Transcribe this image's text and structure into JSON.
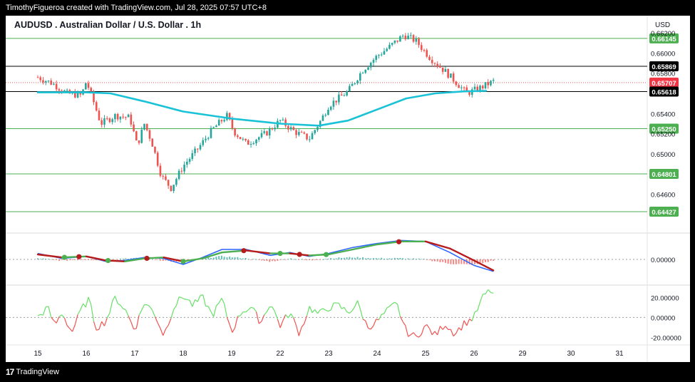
{
  "header": {
    "attribution": "TimothyFigueroa created with TradingView.com, Jul 28, 2025 07:57 UTC+8",
    "symbol_title": "AUDUSD . Australian Dollar / U.S. Dollar . 1h",
    "currency": "USD"
  },
  "footer": {
    "logo_mark": "17",
    "logo_text": "TradingView"
  },
  "colors": {
    "up": "#26a69a",
    "down": "#ef5350",
    "ma": "#19c2d6",
    "hline_green": "#4caf50",
    "hline_black": "#000000",
    "price_dotted": "#ef5350",
    "macd_fast": "#2962ff",
    "macd_slow_up": "#4caf50",
    "macd_slow_down": "#b71c1c",
    "osc_up": "#66e066",
    "osc_down": "#ef5350"
  },
  "chart_data": {
    "type": "candlestick",
    "price_axis": {
      "ticks": [
        "0.66200",
        "0.66000",
        "0.65800",
        "0.65400",
        "0.65200",
        "0.65000",
        "0.64600"
      ],
      "ylim": [
        0.6425,
        0.663
      ]
    },
    "levels": [
      {
        "value": 0.66145,
        "label": "0.66145",
        "color": "#4caf50"
      },
      {
        "value": 0.65869,
        "label": "0.65869",
        "color": "#000000"
      },
      {
        "value": 0.65707,
        "label": "0.65707",
        "color": "#ef5350",
        "style": "dotted"
      },
      {
        "value": 0.65618,
        "label": "0.65618",
        "color": "#000000"
      },
      {
        "value": 0.6525,
        "label": "0.65250",
        "color": "#4caf50"
      },
      {
        "value": 0.64801,
        "label": "0.64801",
        "color": "#4caf50"
      },
      {
        "value": 0.64427,
        "label": "0.64427",
        "color": "#4caf50"
      }
    ],
    "time_axis": {
      "labels": [
        "15",
        "16",
        "17",
        "18",
        "19",
        "22",
        "23",
        "24",
        "25",
        "26",
        "29",
        "30",
        "31"
      ],
      "positions": [
        0,
        1,
        2,
        3,
        4,
        5,
        6,
        7,
        8,
        9,
        10,
        11,
        12
      ]
    },
    "price_path": [
      [
        0,
        0.6576
      ],
      [
        0.3,
        0.657
      ],
      [
        0.6,
        0.656
      ],
      [
        0.9,
        0.6558
      ],
      [
        1.0,
        0.6572
      ],
      [
        1.15,
        0.6552
      ],
      [
        1.3,
        0.653
      ],
      [
        1.6,
        0.6538
      ],
      [
        1.9,
        0.6536
      ],
      [
        2.05,
        0.6508
      ],
      [
        2.2,
        0.653
      ],
      [
        2.35,
        0.6512
      ],
      [
        2.55,
        0.6478
      ],
      [
        2.75,
        0.6466
      ],
      [
        3.0,
        0.6488
      ],
      [
        3.3,
        0.6505
      ],
      [
        3.6,
        0.6524
      ],
      [
        3.9,
        0.6538
      ],
      [
        4.05,
        0.6522
      ],
      [
        4.3,
        0.651
      ],
      [
        4.7,
        0.652
      ],
      [
        5.0,
        0.6533
      ],
      [
        5.3,
        0.6522
      ],
      [
        5.6,
        0.6515
      ],
      [
        5.85,
        0.6534
      ],
      [
        6.0,
        0.6548
      ],
      [
        6.4,
        0.6562
      ],
      [
        6.7,
        0.6583
      ],
      [
        7.0,
        0.6597
      ],
      [
        7.25,
        0.6606
      ],
      [
        7.55,
        0.6618
      ],
      [
        7.8,
        0.6612
      ],
      [
        8.1,
        0.6595
      ],
      [
        8.4,
        0.6582
      ],
      [
        8.65,
        0.657
      ],
      [
        8.85,
        0.656
      ],
      [
        9.15,
        0.6566
      ],
      [
        9.4,
        0.6572
      ]
    ],
    "moving_average": [
      [
        0,
        0.6561
      ],
      [
        1.0,
        0.6561
      ],
      [
        1.5,
        0.656
      ],
      [
        2.2,
        0.6552
      ],
      [
        3.0,
        0.6542
      ],
      [
        4.0,
        0.6535
      ],
      [
        5.0,
        0.653
      ],
      [
        5.8,
        0.6528
      ],
      [
        6.4,
        0.6533
      ],
      [
        7.0,
        0.6544
      ],
      [
        7.6,
        0.6555
      ],
      [
        8.2,
        0.656
      ],
      [
        8.8,
        0.6562
      ],
      [
        9.25,
        0.65625
      ]
    ],
    "macd": {
      "zero_label": "0.00000",
      "fast": [
        [
          0,
          0.3
        ],
        [
          0.5,
          0.05
        ],
        [
          1.0,
          0.15
        ],
        [
          1.4,
          -0.1
        ],
        [
          1.8,
          -0.05
        ],
        [
          2.2,
          0.1
        ],
        [
          2.6,
          0.05
        ],
        [
          3.0,
          -0.25
        ],
        [
          3.4,
          0.1
        ],
        [
          3.8,
          0.5
        ],
        [
          4.3,
          0.5
        ],
        [
          4.8,
          0.2
        ],
        [
          5.2,
          0.35
        ],
        [
          5.6,
          0.15
        ],
        [
          6.0,
          0.3
        ],
        [
          6.5,
          0.6
        ],
        [
          7.0,
          0.8
        ],
        [
          7.5,
          0.95
        ],
        [
          8.0,
          0.9
        ],
        [
          8.5,
          0.35
        ],
        [
          9.0,
          -0.3
        ],
        [
          9.4,
          -0.6
        ]
      ],
      "slow": [
        [
          0,
          0.25
        ],
        [
          0.5,
          0.1
        ],
        [
          1.0,
          0.15
        ],
        [
          1.4,
          -0.05
        ],
        [
          1.8,
          -0.1
        ],
        [
          2.2,
          0.05
        ],
        [
          2.6,
          0.1
        ],
        [
          3.0,
          -0.1
        ],
        [
          3.4,
          0.05
        ],
        [
          3.8,
          0.35
        ],
        [
          4.3,
          0.45
        ],
        [
          4.8,
          0.3
        ],
        [
          5.2,
          0.3
        ],
        [
          5.6,
          0.2
        ],
        [
          6.0,
          0.25
        ],
        [
          6.5,
          0.5
        ],
        [
          7.0,
          0.75
        ],
        [
          7.5,
          0.9
        ],
        [
          8.0,
          0.9
        ],
        [
          8.5,
          0.55
        ],
        [
          9.0,
          -0.05
        ],
        [
          9.4,
          -0.55
        ]
      ],
      "cross_markers": [
        {
          "x": 0.55,
          "type": "up"
        },
        {
          "x": 0.85,
          "type": "down"
        },
        {
          "x": 1.45,
          "type": "up"
        },
        {
          "x": 2.25,
          "type": "down"
        },
        {
          "x": 3.0,
          "type": "up"
        },
        {
          "x": 4.25,
          "type": "down"
        },
        {
          "x": 5.0,
          "type": "up"
        },
        {
          "x": 5.4,
          "type": "down"
        },
        {
          "x": 5.95,
          "type": "up"
        },
        {
          "x": 7.45,
          "type": "down"
        }
      ]
    },
    "oscillator": {
      "ticks": [
        "20.00000",
        "0.00000",
        "-20.00000"
      ],
      "ylim": [
        -26,
        28
      ],
      "values": [
        [
          0,
          0
        ],
        [
          0.2,
          10
        ],
        [
          0.35,
          -8
        ],
        [
          0.5,
          5
        ],
        [
          0.7,
          -15
        ],
        [
          0.9,
          8
        ],
        [
          1.05,
          18
        ],
        [
          1.2,
          -10
        ],
        [
          1.4,
          -4
        ],
        [
          1.6,
          20
        ],
        [
          1.8,
          8
        ],
        [
          2.0,
          -12
        ],
        [
          2.2,
          15
        ],
        [
          2.4,
          5
        ],
        [
          2.6,
          -18
        ],
        [
          2.8,
          10
        ],
        [
          3.0,
          22
        ],
        [
          3.2,
          12
        ],
        [
          3.4,
          20
        ],
        [
          3.6,
          2
        ],
        [
          3.8,
          18
        ],
        [
          4.0,
          -14
        ],
        [
          4.2,
          6
        ],
        [
          4.4,
          10
        ],
        [
          4.6,
          -5
        ],
        [
          4.8,
          15
        ],
        [
          5.0,
          -8
        ],
        [
          5.2,
          5
        ],
        [
          5.4,
          -16
        ],
        [
          5.6,
          10
        ],
        [
          5.8,
          3
        ],
        [
          6.0,
          10
        ],
        [
          6.2,
          12
        ],
        [
          6.4,
          5
        ],
        [
          6.6,
          14
        ],
        [
          6.8,
          -10
        ],
        [
          7.0,
          -4
        ],
        [
          7.2,
          6
        ],
        [
          7.4,
          14
        ],
        [
          7.6,
          -14
        ],
        [
          7.8,
          -20
        ],
        [
          8.0,
          -8
        ],
        [
          8.2,
          -18
        ],
        [
          8.4,
          -6
        ],
        [
          8.6,
          -16
        ],
        [
          8.8,
          -6
        ],
        [
          9.0,
          0
        ],
        [
          9.2,
          22
        ],
        [
          9.35,
          27
        ],
        [
          9.45,
          20
        ]
      ]
    }
  }
}
